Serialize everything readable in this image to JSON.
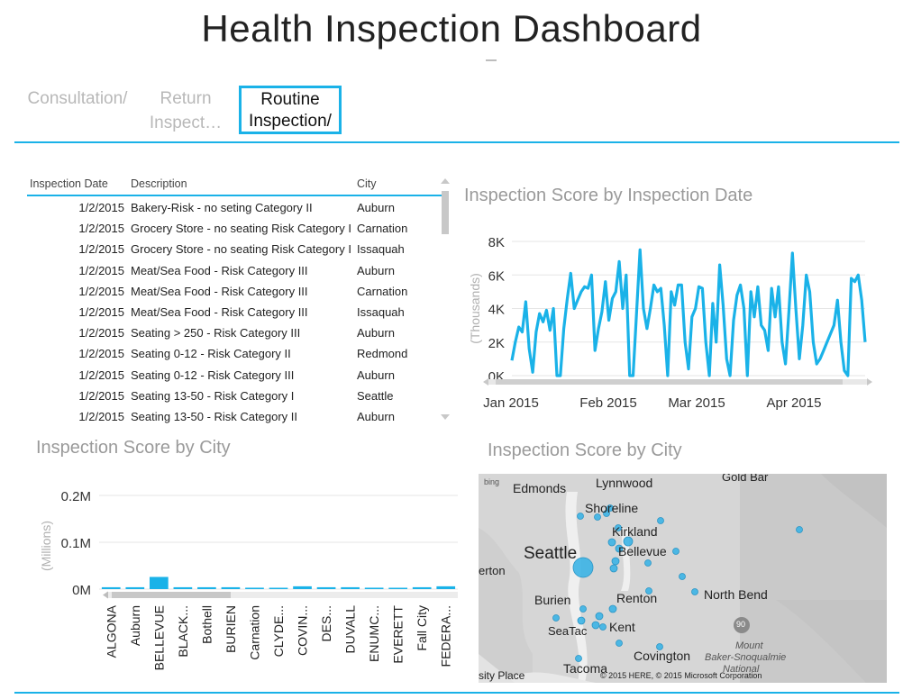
{
  "header": {
    "title": "Health Inspection Dashboard"
  },
  "tabs": [
    {
      "label": "Consultation/",
      "active": false
    },
    {
      "label": "Return Inspect…",
      "active": false
    },
    {
      "label": "Routine Inspection/",
      "active": true
    }
  ],
  "table": {
    "columns": [
      "Inspection Date",
      "Description",
      "City"
    ],
    "rows": [
      [
        "1/2/2015",
        "Bakery-Risk - no seting Category II",
        "Auburn"
      ],
      [
        "1/2/2015",
        "Grocery Store - no seating Risk Category I",
        "Carnation"
      ],
      [
        "1/2/2015",
        "Grocery Store - no seating Risk Category I",
        "Issaquah"
      ],
      [
        "1/2/2015",
        "Meat/Sea Food - Risk Category III",
        "Auburn"
      ],
      [
        "1/2/2015",
        "Meat/Sea Food - Risk Category III",
        "Carnation"
      ],
      [
        "1/2/2015",
        "Meat/Sea Food - Risk Category III",
        "Issaquah"
      ],
      [
        "1/2/2015",
        "Seating > 250 - Risk Category III",
        "Auburn"
      ],
      [
        "1/2/2015",
        "Seating 0-12 - Risk Category II",
        "Redmond"
      ],
      [
        "1/2/2015",
        "Seating 0-12 - Risk Category III",
        "Auburn"
      ],
      [
        "1/2/2015",
        "Seating 13-50 - Risk Category I",
        "Seattle"
      ],
      [
        "1/2/2015",
        "Seating 13-50 - Risk Category II",
        "Auburn"
      ]
    ]
  },
  "chart_data": [
    {
      "type": "line",
      "title": "Inspection Score by Inspection Date",
      "xlabel": "",
      "ylabel": "(Thousands)",
      "ylim": [
        0,
        8000
      ],
      "yticks": [
        "0K",
        "2K",
        "4K",
        "6K",
        "8K"
      ],
      "xticks": [
        "Jan 2015",
        "Feb 2015",
        "Mar 2015",
        "Apr 2015"
      ],
      "grid": true,
      "series": [
        {
          "values": [
            900,
            2000,
            2900,
            2600,
            4400,
            1600,
            200,
            2600,
            3700,
            3200,
            3900,
            2700,
            4000,
            0,
            0,
            2800,
            4600,
            6100,
            4000,
            4500,
            5000,
            5300,
            5200,
            6000,
            1500,
            2800,
            3800,
            5600,
            3300,
            4600,
            5000,
            6800,
            4000,
            6000,
            0,
            0,
            3800,
            7500,
            4000,
            2800,
            4000,
            5400,
            5000,
            5200,
            3000,
            0,
            5000,
            4200,
            5400,
            5400,
            2000,
            400,
            3500,
            4000,
            5300,
            5200,
            2000,
            0,
            4300,
            2000,
            6600,
            4200,
            1000,
            0,
            3300,
            4800,
            5400,
            4000,
            0,
            5000,
            3500,
            5300,
            3000,
            2700,
            1500,
            5200,
            3500,
            5300,
            2000,
            700,
            3900,
            7300,
            4000,
            1000,
            3000,
            6000,
            5000,
            2000,
            700,
            1000,
            1500,
            2000,
            2500,
            3000,
            4500,
            2000,
            300,
            0,
            5800,
            5600,
            6000,
            4500,
            2000
          ]
        }
      ]
    },
    {
      "type": "bar",
      "title": "Inspection Score by City",
      "ylabel": "(Millions)",
      "ylim": [
        0,
        0.2
      ],
      "yticks": [
        "0M",
        "0.1M",
        "0.2M"
      ],
      "categories": [
        "ALGONA",
        "Auburn",
        "BELLEVUE",
        "BLACK...",
        "Bothell",
        "BURIEN",
        "Carnation",
        "CLYDE...",
        "COVIN...",
        "DES...",
        "DUVALL",
        "ENUMC...",
        "EVERETT",
        "Fall City",
        "FEDERA..."
      ],
      "values": [
        0.004,
        0.004,
        0.026,
        0.004,
        0.004,
        0.004,
        0.003,
        0.001,
        0.006,
        0.004,
        0.004,
        0.003,
        0.001,
        0.004,
        0.006
      ],
      "grid": true
    }
  ],
  "map": {
    "title": "Inspection Score by City",
    "logo": "bing",
    "copyright": "© 2015 HERE, © 2015 Microsoft Corporation",
    "labels": [
      "Edmonds",
      "Lynnwood",
      "Gold Bar",
      "Shoreline",
      "Kirkland",
      "Seattle",
      "Bellevue",
      "erton",
      "Burien",
      "Renton",
      "North Bend",
      "SeaTac",
      "Kent",
      "Mount",
      "Baker-Snoqualmie",
      "National",
      "Covington",
      "Tacoma",
      "sity Place",
      "90"
    ]
  },
  "colors": {
    "accent": "#1ab2e8",
    "bubble": "#3cb4e6",
    "muted_text": "#9a9a9a"
  }
}
